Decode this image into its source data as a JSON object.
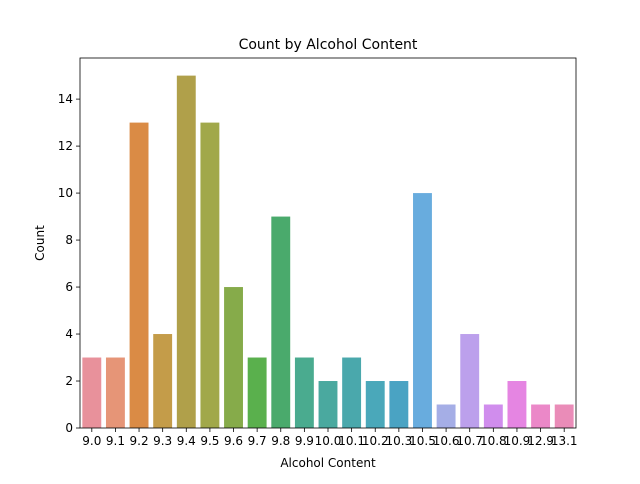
{
  "chart_data": {
    "type": "bar",
    "title": "Count by Alcohol Content",
    "xlabel": "Alcohol Content",
    "ylabel": "Count",
    "categories": [
      "9.0",
      "9.1",
      "9.2",
      "9.3",
      "9.4",
      "9.5",
      "9.6",
      "9.7",
      "9.8",
      "9.9",
      "10.0",
      "10.1",
      "10.2",
      "10.3",
      "10.5",
      "10.6",
      "10.7",
      "10.8",
      "10.9",
      "12.9",
      "13.1"
    ],
    "values": [
      3,
      3,
      13,
      4,
      15,
      13,
      6,
      3,
      9,
      3,
      2,
      3,
      2,
      2,
      10,
      1,
      4,
      1,
      2,
      1,
      1
    ],
    "colors": [
      "#e8919b",
      "#e69577",
      "#da8b45",
      "#c49c49",
      "#b0a04a",
      "#a1a84a",
      "#86ab4a",
      "#5ab04d",
      "#4aaa6c",
      "#4aab8f",
      "#4aa99f",
      "#4aa8ac",
      "#4aa8ba",
      "#4aa3c3",
      "#68acde",
      "#a5aee6",
      "#bca0ec",
      "#d08ded",
      "#e585e2",
      "#eb88c8",
      "#ea8cb8"
    ],
    "ylim": [
      0,
      15.75
    ],
    "yticks": [
      0,
      2,
      4,
      6,
      8,
      10,
      12,
      14
    ],
    "grid": false
  }
}
